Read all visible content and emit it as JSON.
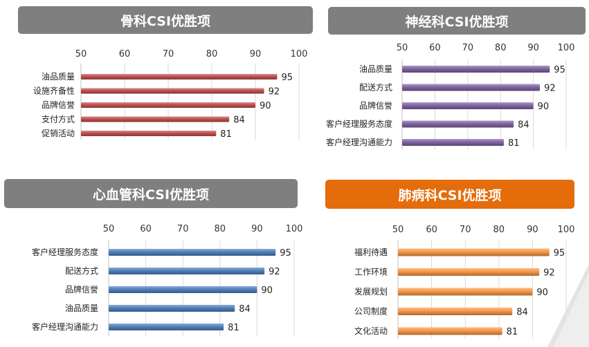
{
  "colors": {
    "header_gray": "#7f7f7f",
    "header_orange": "#e46c0a",
    "bar_red": "#c0504d",
    "bar_purple": "#8064a2",
    "bar_blue": "#4f81bd",
    "bar_orange": "#f79646"
  },
  "chart_data": [
    {
      "type": "bar",
      "orientation": "horizontal",
      "title": "骨科CSI优胜项",
      "categories": [
        "油品质量",
        "设施齐备性",
        "品牌信誉",
        "支付方式",
        "促销活动"
      ],
      "values": [
        95,
        92,
        90,
        84,
        81
      ],
      "xlim": [
        50,
        100
      ],
      "xticks": [
        "50",
        "60",
        "70",
        "80",
        "90",
        "100"
      ],
      "grid": true,
      "color_key": "bar_red",
      "header_color_key": "header_gray"
    },
    {
      "type": "bar",
      "orientation": "horizontal",
      "title": "神经科CSI优胜项",
      "categories": [
        "油品质量",
        "配送方式",
        "品牌信誉",
        "客户经理服务态度",
        "客户经理沟通能力"
      ],
      "values": [
        95,
        92,
        90,
        84,
        81
      ],
      "xlim": [
        50,
        100
      ],
      "xticks": [
        "50",
        "60",
        "70",
        "80",
        "90",
        "100"
      ],
      "grid": true,
      "color_key": "bar_purple",
      "header_color_key": "header_gray"
    },
    {
      "type": "bar",
      "orientation": "horizontal",
      "title": "心血管科CSI优胜项",
      "categories": [
        "客户经理服务态度",
        "配送方式",
        "品牌信誉",
        "油品质量",
        "客户经理沟通能力"
      ],
      "values": [
        95,
        92,
        90,
        84,
        81
      ],
      "xlim": [
        50,
        100
      ],
      "xticks": [
        "50",
        "60",
        "70",
        "80",
        "90",
        "100"
      ],
      "grid": true,
      "color_key": "bar_blue",
      "header_color_key": "header_gray"
    },
    {
      "type": "bar",
      "orientation": "horizontal",
      "title": "肺病科CSI优胜项",
      "categories": [
        "福利待遇",
        "工作环境",
        "发展规划",
        "公司制度",
        "文化活动"
      ],
      "values": [
        95,
        92,
        90,
        84,
        81
      ],
      "xlim": [
        50,
        100
      ],
      "xticks": [
        "50",
        "60",
        "70",
        "80",
        "90",
        "100"
      ],
      "grid": true,
      "color_key": "bar_orange",
      "header_color_key": "header_orange"
    }
  ]
}
